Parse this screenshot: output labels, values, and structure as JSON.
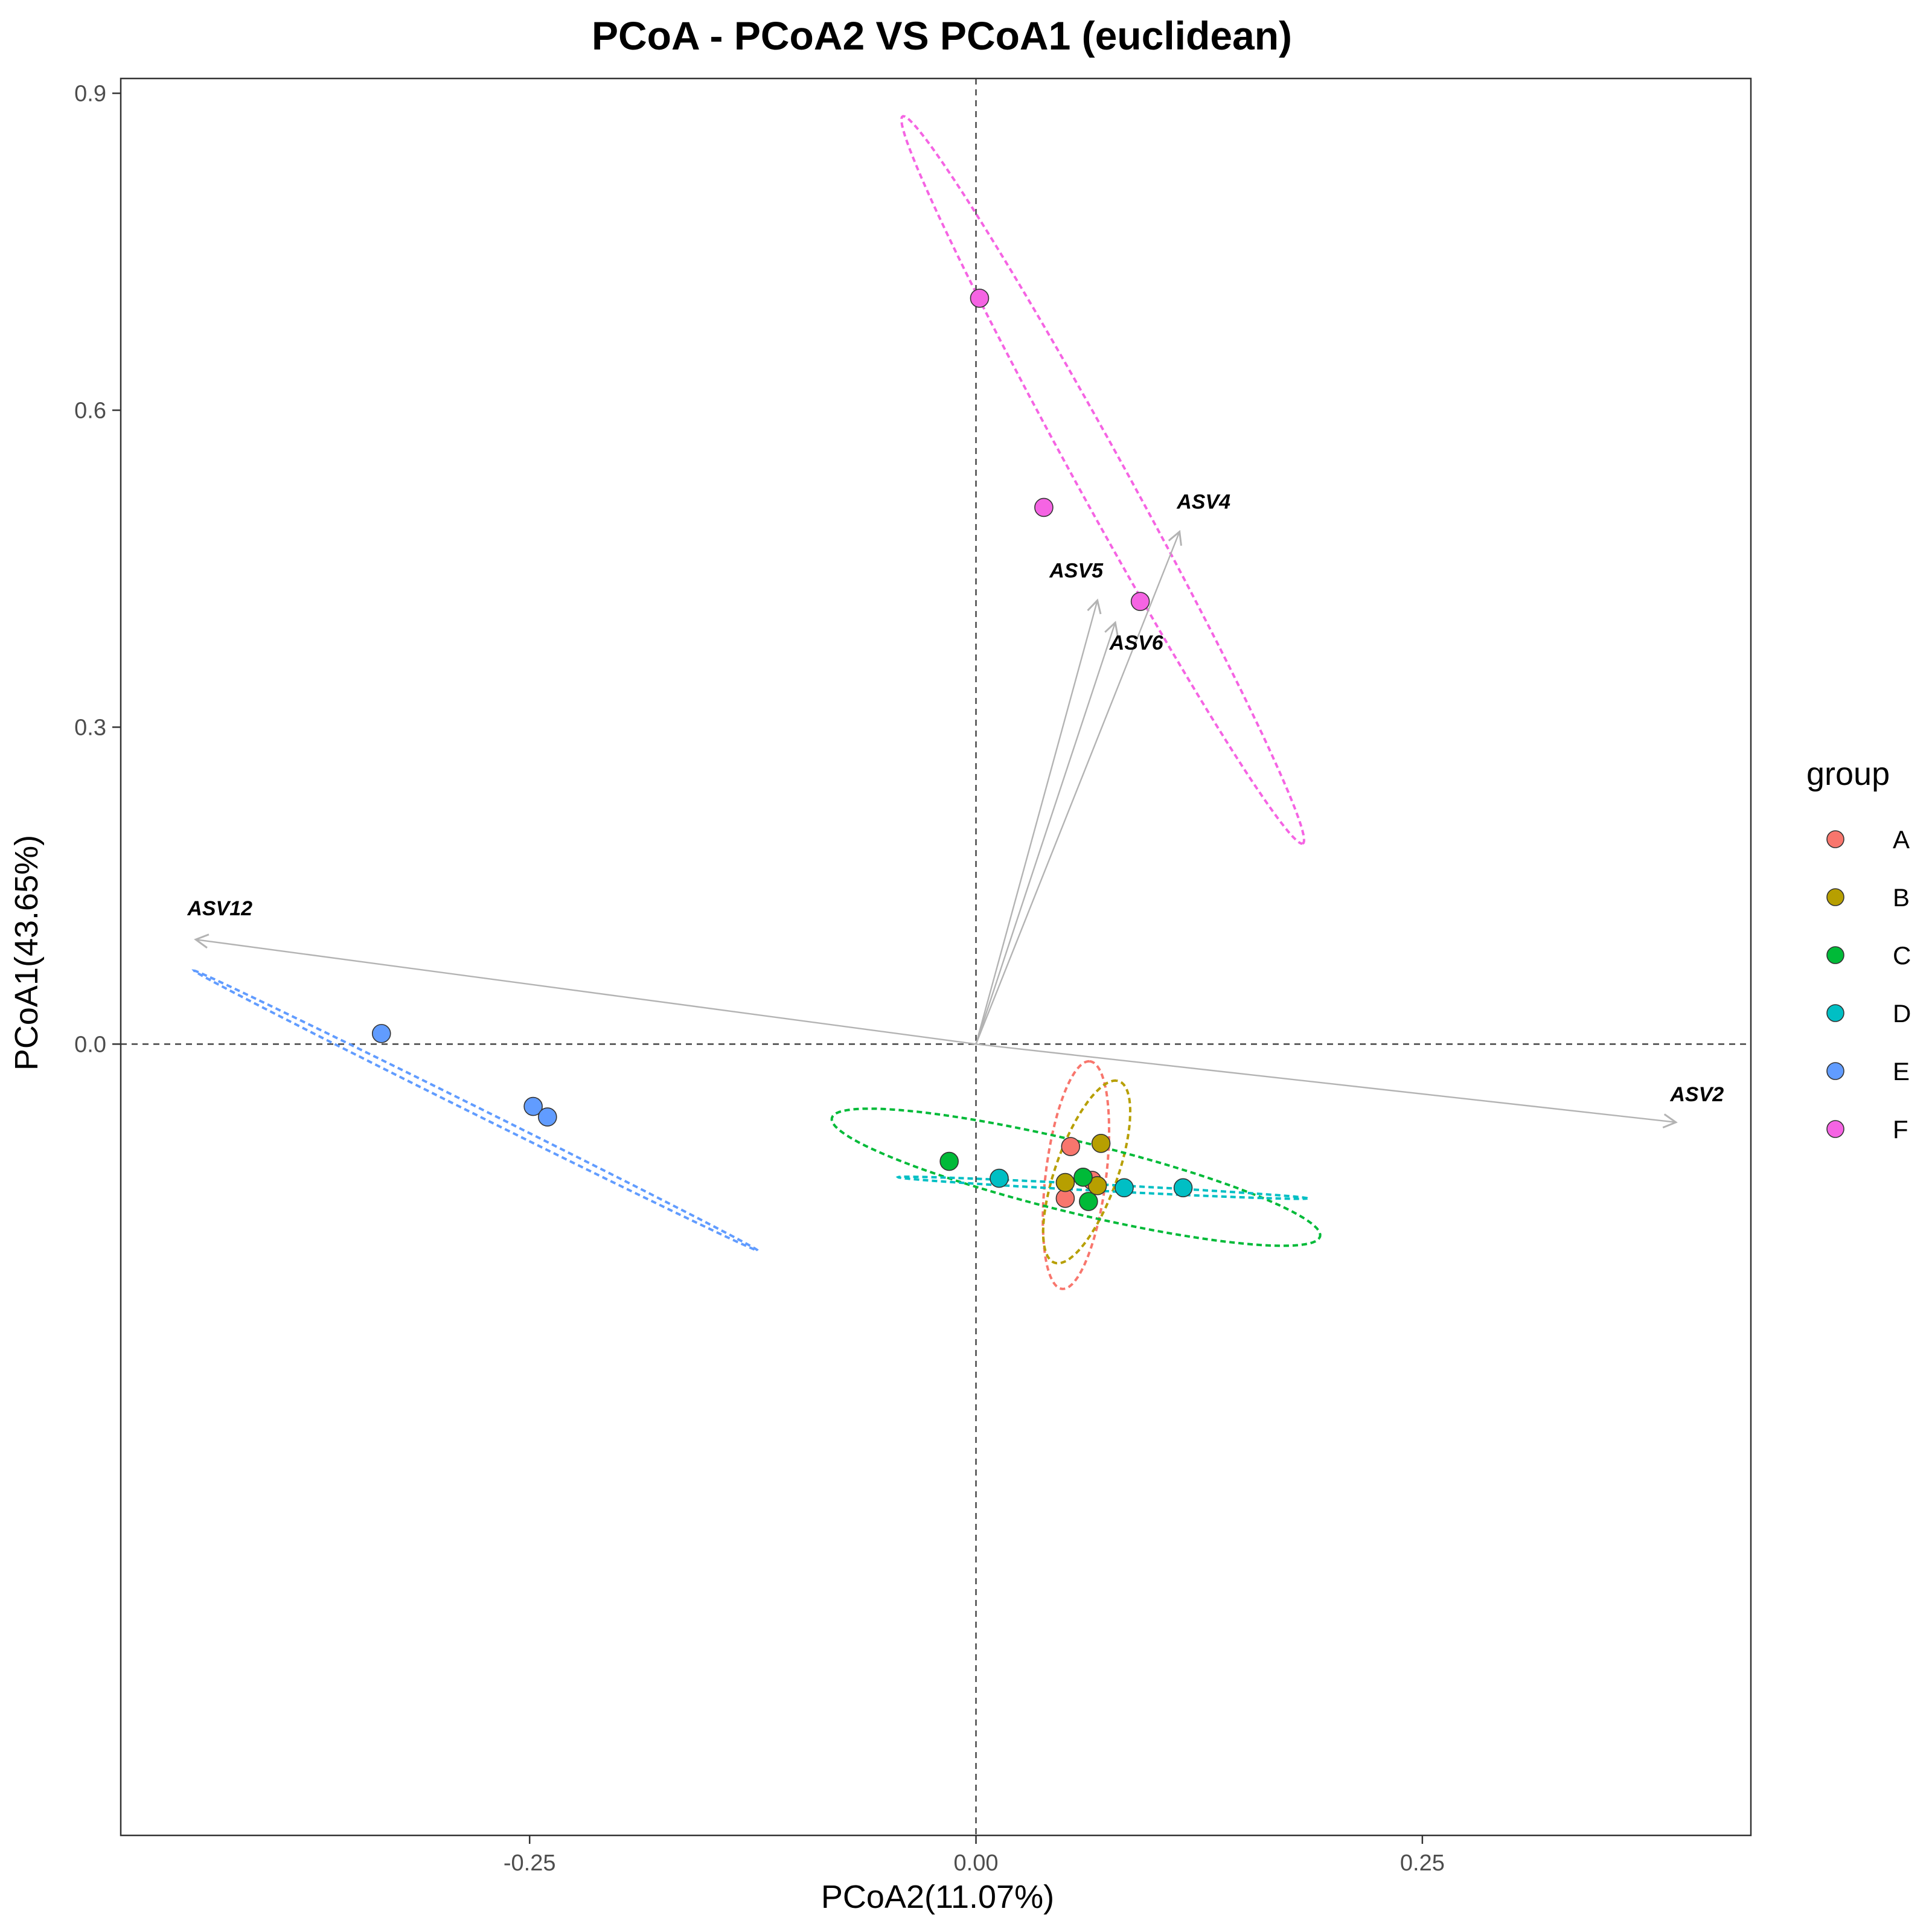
{
  "chart_data": {
    "type": "scatter",
    "title": "PCoA - PCoA2 VS PCoA1 (euclidean)",
    "xlabel": "PCoA2(11.07%)",
    "ylabel": "PCoA1(43.65%)",
    "xlim": [
      -0.479,
      0.434
    ],
    "ylim": [
      -0.749,
      0.914
    ],
    "xticks": [
      -0.25,
      0.0,
      0.25
    ],
    "xtick_labels": [
      "-0.25",
      "0.00",
      "0.25"
    ],
    "yticks": [
      0.0,
      0.3,
      0.6,
      0.9
    ],
    "ytick_labels": [
      "0.0",
      "0.3",
      "0.6",
      "0.9"
    ],
    "grid": false,
    "reference_lines": {
      "x": 0,
      "y": 0,
      "style": "dashed"
    },
    "legend": {
      "title": "group",
      "position": "right"
    },
    "series": [
      {
        "name": "A",
        "color": "#F8766D",
        "points": [
          [
            0.053,
            -0.097
          ],
          [
            0.065,
            -0.129
          ],
          [
            0.05,
            -0.146
          ]
        ],
        "ellipse": {
          "cx": 0.056,
          "cy": -0.124,
          "rx": 0.108,
          "ry": 0.017,
          "angle_deg": 86
        }
      },
      {
        "name": "B",
        "color": "#B79F00",
        "points": [
          [
            0.07,
            -0.094
          ],
          [
            0.05,
            -0.131
          ],
          [
            0.068,
            -0.134
          ]
        ],
        "ellipse": {
          "cx": 0.062,
          "cy": -0.121,
          "rx": 0.088,
          "ry": 0.018,
          "angle_deg": 79
        }
      },
      {
        "name": "C",
        "color": "#00BA38",
        "points": [
          [
            -0.015,
            -0.111
          ],
          [
            0.06,
            -0.126
          ],
          [
            0.063,
            -0.149
          ]
        ],
        "ellipse": {
          "cx": 0.056,
          "cy": -0.126,
          "rx": 0.148,
          "ry": 0.032,
          "angle_deg": -23
        }
      },
      {
        "name": "D",
        "color": "#00BFC4",
        "points": [
          [
            0.013,
            -0.127
          ],
          [
            0.083,
            -0.136
          ],
          [
            0.116,
            -0.136
          ]
        ],
        "ellipse": {
          "cx": 0.071,
          "cy": -0.136,
          "rx": 0.115,
          "ry": 0.003,
          "angle_deg": -5
        }
      },
      {
        "name": "E",
        "color": "#619CFF",
        "points": [
          [
            -0.333,
            0.01
          ],
          [
            -0.248,
            -0.059
          ],
          [
            -0.24,
            -0.069
          ]
        ],
        "ellipse": {
          "cx": -0.28,
          "cy": -0.063,
          "rx": 0.206,
          "ry": 0.003,
          "angle_deg": -40
        }
      },
      {
        "name": "F",
        "color": "#F564E3",
        "points": [
          [
            0.002,
            0.706
          ],
          [
            0.038,
            0.508
          ],
          [
            0.092,
            0.419
          ]
        ],
        "ellipse": {
          "cx": 0.071,
          "cy": 0.534,
          "rx": 0.362,
          "ry": 0.015,
          "angle_deg": -72
        }
      }
    ],
    "vectors": [
      {
        "label": "ASV12",
        "x": -0.437,
        "y": 0.099
      },
      {
        "label": "ASV2",
        "x": 0.392,
        "y": -0.074
      },
      {
        "label": "ASV4",
        "x": 0.114,
        "y": 0.485
      },
      {
        "label": "ASV5",
        "x": 0.068,
        "y": 0.42
      },
      {
        "label": "ASV6",
        "x": 0.078,
        "y": 0.399
      }
    ]
  }
}
